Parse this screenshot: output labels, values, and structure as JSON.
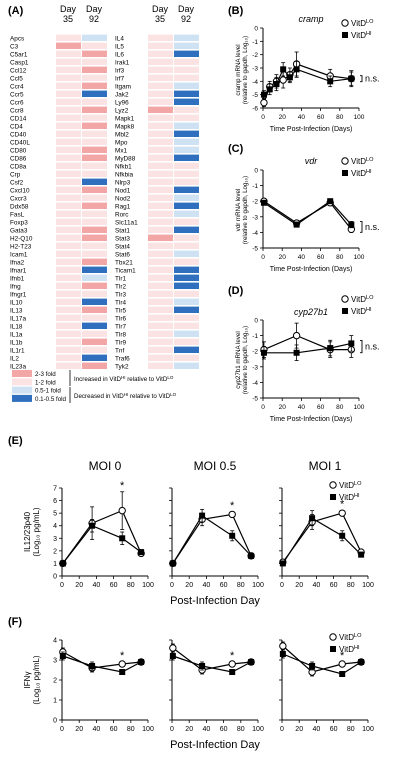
{
  "colors": {
    "up_2_3": "#f2a6a6",
    "up_1_2": "#fbe3e3",
    "down_05_1": "#cfe2f3",
    "down_01_05": "#2f6fbd",
    "line": "#000000"
  },
  "panels": {
    "A": {
      "label": "(A)",
      "col_headers": [
        "Day\n35",
        "Day\n92"
      ],
      "genes_left": [
        "Apcs",
        "C3",
        "C5ar1",
        "Casp1",
        "Ccl12",
        "Ccl5",
        "Ccr4",
        "Ccr5",
        "Ccr6",
        "Ccr8",
        "CD14",
        "CD4",
        "CD40",
        "CD40L",
        "CD80",
        "CD86",
        "CD8a",
        "Crp",
        "Csf2",
        "Cxcl10",
        "Cxcr3",
        "Ddx58",
        "FasL",
        "Foxp3",
        "Gata3",
        "H2-Q10",
        "H2-T23",
        "Icam1",
        "Ifna2",
        "Ifnar1",
        "Ifnb1",
        "Ifng",
        "Ifngr1",
        "IL10",
        "IL13",
        "IL17a",
        "IL18",
        "IL1a",
        "IL1b",
        "IL1r1",
        "IL2",
        "IL23a"
      ],
      "genes_right": [
        "IL4",
        "IL5",
        "IL6",
        "Irak1",
        "Irf3",
        "Irf7",
        "Itgam",
        "Jak2",
        "Ly96",
        "Lyz2",
        "Mapk1",
        "Mapk8",
        "Mbl2",
        "Mpo",
        "Mx1",
        "MyD88",
        "Nfkb1",
        "Nfkbia",
        "Nlrp3",
        "Nod1",
        "Nod2",
        "Rag1",
        "Rorc",
        "Slc11a1",
        "Stat1",
        "Stat3",
        "Stat4",
        "Stat6",
        "Tbx21",
        "Ticam1",
        "Tlr1",
        "Tlr2",
        "Tlr3",
        "Tlr4",
        "Tlr5",
        "Tlr6",
        "Tlr7",
        "Tlr8",
        "Tlr9",
        "Tnf",
        "Traf6",
        "Tyk2"
      ],
      "cells_left": [
        [
          2,
          3
        ],
        [
          1,
          2
        ],
        [
          2,
          1
        ],
        [
          2,
          2
        ],
        [
          2,
          1
        ],
        [
          2,
          2
        ],
        [
          2,
          1
        ],
        [
          2,
          4
        ],
        [
          2,
          2
        ],
        [
          2,
          1
        ],
        [
          2,
          2
        ],
        [
          2,
          1
        ],
        [
          2,
          2
        ],
        [
          2,
          2
        ],
        [
          2,
          1
        ],
        [
          2,
          1
        ],
        [
          2,
          2
        ],
        [
          2,
          2
        ],
        [
          2,
          4
        ],
        [
          2,
          1
        ],
        [
          2,
          2
        ],
        [
          2,
          1
        ],
        [
          2,
          2
        ],
        [
          2,
          2
        ],
        [
          2,
          1
        ],
        [
          2,
          1
        ],
        [
          2,
          2
        ],
        [
          2,
          2
        ],
        [
          2,
          1
        ],
        [
          2,
          4
        ],
        [
          2,
          3
        ],
        [
          2,
          1
        ],
        [
          2,
          2
        ],
        [
          2,
          4
        ],
        [
          2,
          1
        ],
        [
          2,
          2
        ],
        [
          2,
          4
        ],
        [
          2,
          2
        ],
        [
          2,
          1
        ],
        [
          2,
          2
        ],
        [
          2,
          4
        ],
        [
          2,
          1
        ]
      ],
      "cells_right": [
        [
          2,
          3
        ],
        [
          2,
          3
        ],
        [
          2,
          4
        ],
        [
          2,
          2
        ],
        [
          2,
          2
        ],
        [
          2,
          2
        ],
        [
          2,
          3
        ],
        [
          2,
          4
        ],
        [
          2,
          4
        ],
        [
          1,
          2
        ],
        [
          2,
          2
        ],
        [
          2,
          3
        ],
        [
          2,
          4
        ],
        [
          2,
          3
        ],
        [
          2,
          3
        ],
        [
          2,
          4
        ],
        [
          2,
          2
        ],
        [
          2,
          2
        ],
        [
          2,
          2
        ],
        [
          2,
          4
        ],
        [
          2,
          3
        ],
        [
          2,
          4
        ],
        [
          2,
          3
        ],
        [
          2,
          2
        ],
        [
          2,
          4
        ],
        [
          1,
          2
        ],
        [
          2,
          2
        ],
        [
          2,
          3
        ],
        [
          2,
          2
        ],
        [
          2,
          4
        ],
        [
          2,
          4
        ],
        [
          2,
          4
        ],
        [
          2,
          2
        ],
        [
          2,
          3
        ],
        [
          2,
          4
        ],
        [
          2,
          2
        ],
        [
          2,
          2
        ],
        [
          2,
          3
        ],
        [
          2,
          2
        ],
        [
          2,
          4
        ],
        [
          2,
          2
        ],
        [
          2,
          3
        ]
      ],
      "legend": [
        {
          "code": 1,
          "label": "2-3 fold"
        },
        {
          "code": 2,
          "label": "1-2 fold"
        },
        {
          "code": 3,
          "label": "0.5-1 fold"
        },
        {
          "code": 4,
          "label": "0.1-0.5 fold"
        }
      ],
      "legend_up": "Increased in VitD",
      "legend_up_sup": "HI",
      "legend_up_tail": " relative to VitD",
      "legend_up_tail_sup": "LO",
      "legend_down": "Decreased in VitD",
      "legend_down_sup": "HI",
      "legend_down_tail": " relative to VitD",
      "legend_down_tail_sup": "LO"
    },
    "B": {
      "label": "(B)",
      "gene": "cramp"
    },
    "C": {
      "label": "(C)",
      "gene": "vdr"
    },
    "D": {
      "label": "(D)",
      "gene": "cyp27b1"
    },
    "E": {
      "label": "(E)"
    },
    "F": {
      "label": "(F)"
    },
    "legend_lo": "VitD",
    "legend_lo_sup": "LO",
    "legend_hi": "VitD",
    "legend_hi_sup": "HI",
    "ns": "n.s.",
    "star": "*"
  },
  "chart_data": [
    {
      "id": "B",
      "type": "line",
      "title": "cramp",
      "ylabel": "cramp mRNA level (relative to gapdh, Log10)",
      "xlabel": "Time Post-Infection (Days)",
      "xlim": [
        0,
        100
      ],
      "ylim": [
        -6,
        0
      ],
      "xticks": [
        0,
        20,
        40,
        60,
        80,
        100
      ],
      "yticks": [
        0,
        -1,
        -2,
        -3,
        -4,
        -5,
        -6
      ],
      "series": [
        {
          "name": "VitDLO",
          "x": [
            1,
            7,
            14,
            21,
            28,
            35,
            70,
            92
          ],
          "y": [
            -5.6,
            -4.4,
            -4.0,
            -3.9,
            -3.5,
            -2.7,
            -3.6,
            -3.8
          ],
          "err": [
            0.3,
            0.4,
            0.5,
            0.6,
            0.5,
            0.9,
            0.5,
            0.6
          ]
        },
        {
          "name": "VitDHI",
          "x": [
            1,
            7,
            14,
            21,
            28,
            35,
            70,
            92
          ],
          "y": [
            -5.0,
            -4.6,
            -4.2,
            -3.1,
            -3.7,
            -3.1,
            -4.0,
            -3.8
          ],
          "err": [
            0.3,
            0.4,
            0.5,
            0.5,
            0.4,
            0.6,
            0.4,
            0.5
          ]
        }
      ]
    },
    {
      "id": "C",
      "type": "line",
      "title": "vdr",
      "ylabel": "vdr mRNA level (relative to gapdh, Log10)",
      "xlabel": "Time Post-Infection (Days)",
      "xlim": [
        0,
        100
      ],
      "ylim": [
        -5,
        0
      ],
      "xticks": [
        0,
        20,
        40,
        60,
        80,
        100
      ],
      "yticks": [
        0,
        -1,
        -2,
        -3,
        -4,
        -5
      ],
      "series": [
        {
          "name": "VitDLO",
          "x": [
            1,
            35,
            70,
            92
          ],
          "y": [
            -2.0,
            -3.4,
            -2.1,
            -3.8
          ],
          "err": [
            0.15,
            0.15,
            0.1,
            0.2
          ]
        },
        {
          "name": "VitDHI",
          "x": [
            1,
            35,
            70,
            92
          ],
          "y": [
            -2.1,
            -3.5,
            -2.0,
            -3.5
          ],
          "err": [
            0.15,
            0.15,
            0.1,
            0.2
          ]
        }
      ]
    },
    {
      "id": "D",
      "type": "line",
      "title": "cyp27b1",
      "ylabel": "cyp27b1 mRNA level (relative to gapdh, Log10)",
      "xlabel": "Time Post-Infection (Days)",
      "xlim": [
        0,
        100
      ],
      "ylim": [
        -5,
        0
      ],
      "xticks": [
        0,
        20,
        40,
        60,
        80,
        100
      ],
      "yticks": [
        0,
        -1,
        -2,
        -3,
        -4,
        -5
      ],
      "series": [
        {
          "name": "VitDLO",
          "x": [
            1,
            35,
            70,
            92
          ],
          "y": [
            -1.9,
            -1.0,
            -1.9,
            -1.9
          ],
          "err": [
            0.5,
            0.8,
            0.5,
            0.5
          ]
        },
        {
          "name": "VitDHI",
          "x": [
            1,
            35,
            70,
            92
          ],
          "y": [
            -2.1,
            -2.1,
            -1.8,
            -1.5
          ],
          "err": [
            0.4,
            0.5,
            0.5,
            0.5
          ]
        }
      ]
    },
    {
      "id": "E1",
      "type": "line",
      "title": "MOI 0",
      "ylabel": "IL12/23p40 (Log10 pg/mL)",
      "xlabel": "Post-Infection Day",
      "xlim": [
        0,
        100
      ],
      "ylim": [
        0,
        7
      ],
      "xticks": [
        0,
        20,
        40,
        60,
        80,
        100
      ],
      "yticks": [
        0,
        1,
        2,
        3,
        4,
        5,
        6,
        7
      ],
      "star_x": 70,
      "series": [
        {
          "name": "VitDLO",
          "x": [
            1,
            35,
            70,
            92
          ],
          "y": [
            1.0,
            4.2,
            5.2,
            1.8
          ],
          "err": [
            0.1,
            1.3,
            1.5,
            0.2
          ]
        },
        {
          "name": "VitDHI",
          "x": [
            1,
            35,
            70,
            92
          ],
          "y": [
            1.0,
            4.0,
            3.0,
            1.9
          ],
          "err": [
            0.1,
            0.5,
            0.5,
            0.2
          ]
        }
      ]
    },
    {
      "id": "E2",
      "type": "line",
      "title": "MOI 0.5",
      "xlim": [
        0,
        100
      ],
      "ylim": [
        0,
        7
      ],
      "xticks": [
        0,
        20,
        40,
        60,
        80,
        100
      ],
      "yticks": [
        0,
        1,
        2,
        3,
        4,
        5,
        6,
        7
      ],
      "star_x": 70,
      "series": [
        {
          "name": "VitDLO",
          "x": [
            1,
            35,
            70,
            92
          ],
          "y": [
            1.0,
            4.5,
            4.9,
            1.6
          ],
          "err": [
            0.1,
            0.5,
            0.2,
            0.2
          ]
        },
        {
          "name": "VitDHI",
          "x": [
            1,
            35,
            70,
            92
          ],
          "y": [
            1.0,
            4.8,
            3.2,
            1.6
          ],
          "err": [
            0.1,
            0.5,
            0.4,
            0.2
          ]
        }
      ]
    },
    {
      "id": "E3",
      "type": "line",
      "title": "MOI 1",
      "xlim": [
        0,
        100
      ],
      "ylim": [
        0,
        7
      ],
      "xticks": [
        0,
        20,
        40,
        60,
        80,
        100
      ],
      "yticks": [
        0,
        1,
        2,
        3,
        4,
        5,
        6,
        7
      ],
      "star_x": 70,
      "series": [
        {
          "name": "VitDLO",
          "x": [
            1,
            35,
            70,
            92
          ],
          "y": [
            1.1,
            4.3,
            5.0,
            1.9
          ],
          "err": [
            0.1,
            0.6,
            0.2,
            0.2
          ]
        },
        {
          "name": "VitDHI",
          "x": [
            1,
            35,
            70,
            92
          ],
          "y": [
            1.0,
            4.6,
            3.2,
            1.7
          ],
          "err": [
            0.1,
            0.6,
            0.4,
            0.2
          ]
        }
      ]
    },
    {
      "id": "F1",
      "type": "line",
      "title": "",
      "ylabel": "IFNγ (Log10 pg/mL)",
      "xlabel": "Post-Infection Day",
      "xlim": [
        0,
        100
      ],
      "ylim": [
        0,
        4
      ],
      "xticks": [
        0,
        20,
        40,
        60,
        80,
        100
      ],
      "yticks": [
        0,
        1,
        2,
        3,
        4
      ],
      "star_x": 70,
      "series": [
        {
          "name": "VitDLO",
          "x": [
            1,
            35,
            70,
            92
          ],
          "y": [
            3.4,
            2.6,
            2.8,
            2.9
          ],
          "err": [
            0.2,
            0.2,
            0.1,
            0.1
          ]
        },
        {
          "name": "VitDHI",
          "x": [
            1,
            35,
            70,
            92
          ],
          "y": [
            3.2,
            2.7,
            2.4,
            2.9
          ],
          "err": [
            0.2,
            0.2,
            0.1,
            0.1
          ]
        }
      ]
    },
    {
      "id": "F2",
      "type": "line",
      "title": "",
      "xlim": [
        0,
        100
      ],
      "ylim": [
        0,
        4
      ],
      "xticks": [
        0,
        20,
        40,
        60,
        80,
        100
      ],
      "yticks": [
        0,
        1,
        2,
        3,
        4
      ],
      "star_x": 70,
      "series": [
        {
          "name": "VitDLO",
          "x": [
            1,
            35,
            70,
            92
          ],
          "y": [
            3.6,
            2.5,
            2.8,
            2.9
          ],
          "err": [
            0.2,
            0.2,
            0.1,
            0.1
          ]
        },
        {
          "name": "VitDHI",
          "x": [
            1,
            35,
            70,
            92
          ],
          "y": [
            3.2,
            2.7,
            2.4,
            2.9
          ],
          "err": [
            0.2,
            0.2,
            0.1,
            0.1
          ]
        }
      ]
    },
    {
      "id": "F3",
      "type": "line",
      "title": "",
      "xlim": [
        0,
        100
      ],
      "ylim": [
        0,
        4
      ],
      "xticks": [
        0,
        20,
        40,
        60,
        80,
        100
      ],
      "yticks": [
        0,
        1,
        2,
        3,
        4
      ],
      "star_x": 70,
      "series": [
        {
          "name": "VitDLO",
          "x": [
            1,
            35,
            70,
            92
          ],
          "y": [
            3.7,
            2.4,
            2.8,
            2.9
          ],
          "err": [
            0.2,
            0.2,
            0.1,
            0.1
          ]
        },
        {
          "name": "VitDHI",
          "x": [
            1,
            35,
            70,
            92
          ],
          "y": [
            3.3,
            2.7,
            2.3,
            2.9
          ],
          "err": [
            0.2,
            0.2,
            0.1,
            0.1
          ]
        }
      ]
    }
  ]
}
